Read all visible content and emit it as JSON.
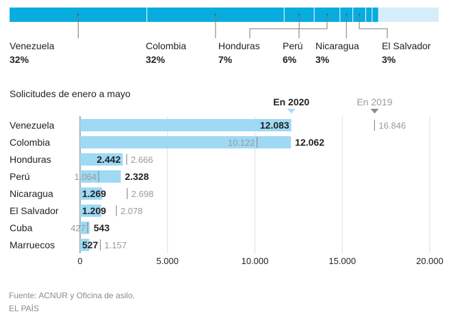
{
  "colors": {
    "bar_2020": "#9fd9f3",
    "stacked_main": "#09acde",
    "stacked_rest": "#d4edf9",
    "marker_2020": "#aadcf4",
    "marker_2019": "#8d8d8d",
    "text_dark": "#222222",
    "text_light": "#9a9a9a",
    "grid": "#dedede"
  },
  "chart_data": [
    {
      "type": "bar",
      "stacked": true,
      "orientation": "horizontal",
      "segments": [
        {
          "name": "Venezuela",
          "pct": 32,
          "label": "Venezuela",
          "value_label": "32%"
        },
        {
          "name": "Colombia",
          "pct": 32,
          "label": "Colombia",
          "value_label": "32%"
        },
        {
          "name": "Honduras",
          "pct": 7,
          "label": "Honduras",
          "value_label": "7%"
        },
        {
          "name": "Perú",
          "pct": 6,
          "label": "Perú",
          "value_label": "6%"
        },
        {
          "name": "Nicaragua",
          "pct": 3,
          "label": "Nicaragua",
          "value_label": "3%"
        },
        {
          "name": "El Salvador",
          "pct": 3,
          "label": "El Salvador",
          "value_label": "3%"
        },
        {
          "name": "Cuba",
          "pct": 1.5,
          "label": "",
          "value_label": ""
        },
        {
          "name": "Marruecos",
          "pct": 1.5,
          "label": "",
          "value_label": ""
        }
      ],
      "rest_pct": 17
    },
    {
      "type": "bar",
      "orientation": "horizontal",
      "title": "Solicitudes de enero a mayo",
      "legend": {
        "series_2020": "En 2020",
        "series_2019": "En 2019",
        "placement": "top"
      },
      "categories": [
        "Venezuela",
        "Colombia",
        "Honduras",
        "Perú",
        "Nicaragua",
        "El Salvador",
        "Cuba",
        "Marruecos"
      ],
      "series": [
        {
          "name": "En 2020",
          "values": [
            12083,
            12062,
            2442,
            2328,
            1269,
            1209,
            543,
            527
          ],
          "labels": [
            "12.083",
            "12.062",
            "2.442",
            "2.328",
            "1.269",
            "1.209",
            "543",
            "527"
          ]
        },
        {
          "name": "En 2019",
          "values": [
            16846,
            10122,
            2666,
            1064,
            2698,
            2078,
            427,
            1157
          ],
          "labels": [
            "16.846",
            "10.122",
            "2.666",
            "1.064",
            "2.698",
            "2.078",
            "427",
            "1.157"
          ]
        }
      ],
      "xlim": [
        0,
        20000
      ],
      "xticks": [
        0,
        5000,
        10000,
        15000,
        20000
      ],
      "xtick_labels": [
        "0",
        "5.000",
        "10.000",
        "15.000",
        "20.000"
      ],
      "grid": true
    }
  ],
  "footer": {
    "source": "Fuente: ACNUR y Oficina de asilo.",
    "publisher": "EL PAÍS"
  }
}
